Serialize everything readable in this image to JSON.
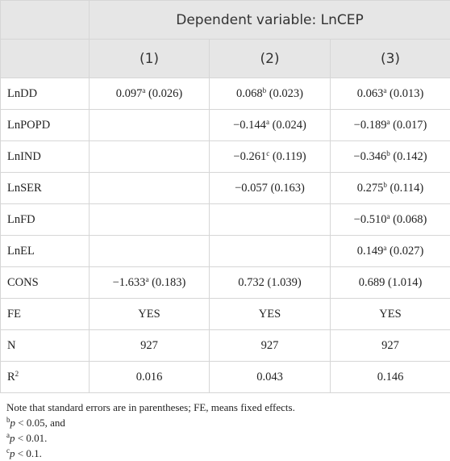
{
  "table": {
    "header": {
      "title": "Dependent variable: LnCEP",
      "columns": [
        "(1)",
        "(2)",
        "(3)"
      ]
    },
    "rows": [
      {
        "label": "LnDD",
        "cells": [
          {
            "coef": "0.097",
            "sup": "a",
            "se": "(0.026)"
          },
          {
            "coef": "0.068",
            "sup": "b",
            "se": "(0.023)"
          },
          {
            "coef": "0.063",
            "sup": "a",
            "se": "(0.013)"
          }
        ]
      },
      {
        "label": "LnPOPD",
        "cells": [
          null,
          {
            "coef": "−0.144",
            "sup": "a",
            "se": "(0.024)"
          },
          {
            "coef": "−0.189",
            "sup": "a",
            "se": "(0.017)"
          }
        ]
      },
      {
        "label": "LnIND",
        "cells": [
          null,
          {
            "coef": "−0.261",
            "sup": "c",
            "se": "(0.119)"
          },
          {
            "coef": "−0.346",
            "sup": "b",
            "se": "(0.142)"
          }
        ]
      },
      {
        "label": "LnSER",
        "cells": [
          null,
          {
            "coef": "−0.057",
            "se": "(0.163)"
          },
          {
            "coef": "0.275",
            "sup": "b",
            "se": "(0.114)"
          }
        ]
      },
      {
        "label": "LnFD",
        "cells": [
          null,
          null,
          {
            "coef": "−0.510",
            "sup": "a",
            "se": "(0.068)"
          }
        ]
      },
      {
        "label": "LnEL",
        "cells": [
          null,
          null,
          {
            "coef": "0.149",
            "sup": "a",
            "se": "(0.027)"
          }
        ]
      },
      {
        "label": "CONS",
        "cells": [
          {
            "coef": "−1.633",
            "sup": "a",
            "se": "(0.183)"
          },
          {
            "coef": "0.732",
            "se": "(1.039)"
          },
          {
            "coef": "0.689",
            "se": "(1.014)"
          }
        ]
      },
      {
        "label": "FE",
        "cells": [
          {
            "coef": "YES"
          },
          {
            "coef": "YES"
          },
          {
            "coef": "YES"
          }
        ]
      },
      {
        "label": "N",
        "cells": [
          {
            "coef": "927"
          },
          {
            "coef": "927"
          },
          {
            "coef": "927"
          }
        ]
      },
      {
        "label": "R",
        "label_sup": "2",
        "cells": [
          {
            "coef": "0.016"
          },
          {
            "coef": "0.043"
          },
          {
            "coef": "0.146"
          }
        ]
      }
    ]
  },
  "notes": [
    {
      "text": "Note that standard errors are in parentheses; FE, means fixed effects."
    },
    {
      "sup": "b",
      "var": "p",
      "text": "< 0.05, and"
    },
    {
      "sup": "a",
      "var": "p",
      "text": "< 0.01."
    },
    {
      "sup": "c",
      "var": "p",
      "text": "< 0.1."
    }
  ]
}
